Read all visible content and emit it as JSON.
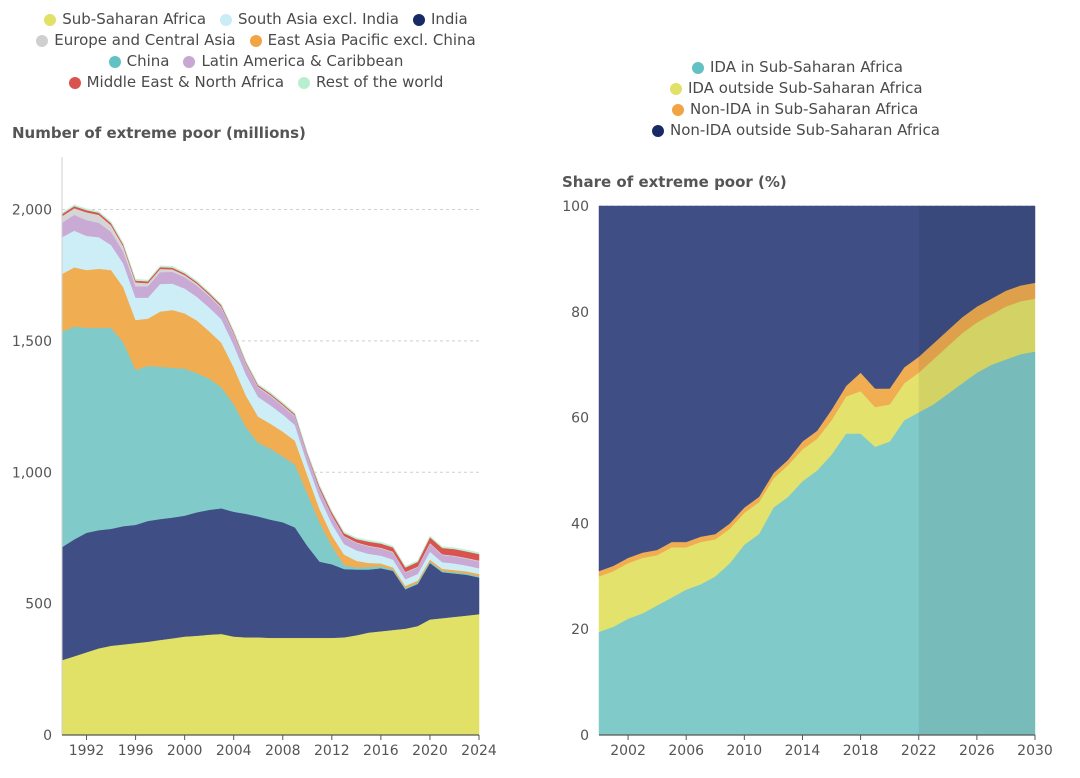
{
  "legend_left": [
    {
      "label": "Sub-Saharan Africa",
      "color": "#e1e067"
    },
    {
      "label": "South Asia excl. India",
      "color": "#c9ecf7"
    },
    {
      "label": "India",
      "color": "#182a66"
    },
    {
      "label": "Europe and Central Asia",
      "color": "#cfcfcf"
    },
    {
      "label": "East Asia Pacific excl. China",
      "color": "#f0a443"
    },
    {
      "label": "China",
      "color": "#62c1c2"
    },
    {
      "label": "Latin America & Caribbean",
      "color": "#c8a7d3"
    },
    {
      "label": "Middle East & North Africa",
      "color": "#d9534f"
    },
    {
      "label": "Rest of the world",
      "color": "#b7f0cf"
    }
  ],
  "legend_right": [
    {
      "label": "IDA in Sub-Saharan Africa",
      "color": "#62c1c2"
    },
    {
      "label": "IDA outside Sub-Saharan Africa",
      "color": "#e1e067"
    },
    {
      "label": "Non-IDA in Sub-Saharan Africa",
      "color": "#f0a443"
    },
    {
      "label": "Non-IDA outside Sub-Saharan Africa",
      "color": "#182a66"
    }
  ],
  "chart_data": [
    {
      "type": "area",
      "stacked": true,
      "title": "Number of extreme poor (millions)",
      "xlabel": "",
      "ylabel": "",
      "x": [
        1990,
        1991,
        1992,
        1993,
        1994,
        1995,
        1996,
        1997,
        1998,
        1999,
        2000,
        2001,
        2002,
        2003,
        2004,
        2005,
        2006,
        2007,
        2008,
        2009,
        2010,
        2011,
        2012,
        2013,
        2014,
        2015,
        2016,
        2017,
        2018,
        2019,
        2020,
        2021,
        2022,
        2023,
        2024
      ],
      "xticks": [
        "1992",
        "1996",
        "2000",
        "2004",
        "2008",
        "2012",
        "2016",
        "2020",
        "2024"
      ],
      "xtick_values": [
        1992,
        1996,
        2000,
        2004,
        2008,
        2012,
        2016,
        2020,
        2024
      ],
      "yticks": [
        "0",
        "500",
        "1,000",
        "1,500",
        "2,000"
      ],
      "ytick_values": [
        0,
        500,
        1000,
        1500,
        2000
      ],
      "ylim": [
        0,
        2200
      ],
      "grid": true,
      "series": [
        {
          "name": "Sub-Saharan Africa",
          "color": "#e1e067",
          "values": [
            285,
            300,
            315,
            330,
            340,
            345,
            350,
            355,
            362,
            368,
            375,
            378,
            382,
            385,
            375,
            372,
            372,
            370,
            370,
            370,
            370,
            370,
            370,
            372,
            380,
            390,
            395,
            400,
            405,
            415,
            440,
            445,
            450,
            455,
            460
          ]
        },
        {
          "name": "India",
          "color": "#3f4f85",
          "values": [
            430,
            445,
            455,
            450,
            445,
            450,
            450,
            460,
            460,
            460,
            460,
            470,
            475,
            478,
            475,
            470,
            460,
            450,
            440,
            420,
            350,
            290,
            280,
            260,
            250,
            240,
            240,
            225,
            150,
            160,
            215,
            175,
            165,
            155,
            140
          ]
        },
        {
          "name": "China",
          "color": "#80cbca",
          "values": [
            820,
            810,
            780,
            770,
            765,
            700,
            590,
            590,
            580,
            570,
            560,
            530,
            500,
            460,
            410,
            330,
            280,
            270,
            250,
            240,
            200,
            150,
            70,
            15,
            8,
            10,
            8,
            5,
            5,
            5,
            5,
            5,
            5,
            5,
            5
          ]
        },
        {
          "name": "East Asia Pacific excl. China",
          "color": "#f0ad52",
          "values": [
            220,
            225,
            220,
            225,
            220,
            210,
            190,
            180,
            210,
            220,
            210,
            200,
            180,
            170,
            140,
            120,
            100,
            95,
            95,
            90,
            70,
            50,
            40,
            40,
            25,
            15,
            10,
            8,
            8,
            8,
            8,
            8,
            8,
            8,
            8
          ]
        },
        {
          "name": "South Asia excl. India",
          "color": "#cdeef7",
          "values": [
            140,
            140,
            130,
            120,
            95,
            90,
            85,
            80,
            105,
            100,
            95,
            90,
            90,
            90,
            85,
            80,
            75,
            70,
            65,
            60,
            45,
            45,
            45,
            40,
            40,
            35,
            30,
            30,
            25,
            25,
            30,
            25,
            25,
            22,
            22
          ]
        },
        {
          "name": "Latin America & Caribbean",
          "color": "#c8aad5",
          "values": [
            55,
            60,
            60,
            55,
            50,
            45,
            43,
            43,
            45,
            45,
            43,
            43,
            43,
            42,
            40,
            38,
            35,
            35,
            32,
            32,
            30,
            30,
            30,
            28,
            28,
            28,
            27,
            27,
            25,
            25,
            30,
            27,
            27,
            26,
            26
          ]
        },
        {
          "name": "Europe and Central Asia",
          "color": "#d5d5d5",
          "values": [
            25,
            25,
            30,
            30,
            25,
            20,
            15,
            12,
            12,
            10,
            8,
            7,
            6,
            5,
            5,
            4,
            4,
            4,
            4,
            4,
            3,
            3,
            3,
            3,
            3,
            3,
            3,
            3,
            3,
            3,
            3,
            3,
            3,
            3,
            3
          ]
        },
        {
          "name": "Middle East & North Africa",
          "color": "#d9534f",
          "values": [
            8,
            8,
            8,
            8,
            8,
            7,
            7,
            7,
            7,
            6,
            6,
            6,
            6,
            6,
            5,
            5,
            5,
            5,
            5,
            5,
            5,
            8,
            10,
            10,
            12,
            15,
            16,
            16,
            17,
            18,
            22,
            24,
            25,
            25,
            25
          ]
        },
        {
          "name": "Rest of the world",
          "color": "#bff2d4",
          "values": [
            5,
            5,
            5,
            5,
            5,
            5,
            5,
            5,
            5,
            5,
            5,
            5,
            5,
            5,
            5,
            5,
            5,
            5,
            5,
            5,
            5,
            5,
            5,
            5,
            5,
            5,
            5,
            5,
            5,
            5,
            5,
            5,
            5,
            5,
            5
          ]
        }
      ]
    },
    {
      "type": "area",
      "stacked": true,
      "title": "Share of extreme poor (%)",
      "xlabel": "",
      "ylabel": "",
      "x": [
        2000,
        2001,
        2002,
        2003,
        2004,
        2005,
        2006,
        2007,
        2008,
        2009,
        2010,
        2011,
        2012,
        2013,
        2014,
        2015,
        2016,
        2017,
        2018,
        2019,
        2020,
        2021,
        2022,
        2023,
        2024,
        2025,
        2026,
        2027,
        2028,
        2029,
        2030
      ],
      "xticks": [
        "2002",
        "2006",
        "2010",
        "2014",
        "2018",
        "2022",
        "2026",
        "2030"
      ],
      "xtick_values": [
        2002,
        2006,
        2010,
        2014,
        2018,
        2022,
        2026,
        2030
      ],
      "yticks": [
        "0",
        "20",
        "40",
        "60",
        "80",
        "100"
      ],
      "ytick_values": [
        0,
        20,
        40,
        60,
        80,
        100
      ],
      "ylim": [
        0,
        100
      ],
      "grid": true,
      "projection_start": 2022,
      "series": [
        {
          "name": "IDA in Sub-Saharan Africa",
          "color": "#80cbca",
          "values": [
            19.5,
            20.5,
            22,
            23,
            24.5,
            26,
            27.5,
            28.5,
            30,
            32.5,
            36,
            38,
            43,
            45,
            48,
            50,
            53,
            57,
            57,
            54.5,
            55.5,
            59.5,
            61,
            62.5,
            64.5,
            66.5,
            68.5,
            70,
            71,
            72,
            72.5
          ]
        },
        {
          "name": "IDA outside Sub-Saharan Africa",
          "color": "#e3e26c",
          "values": [
            10.5,
            10.5,
            10.5,
            10.5,
            9.5,
            9.5,
            8,
            8,
            7,
            6.5,
            6,
            6,
            5.5,
            6,
            6,
            6,
            6.5,
            7,
            8,
            7.5,
            7,
            7,
            7.5,
            8.5,
            9,
            9.5,
            9.5,
            9.5,
            10,
            10,
            10
          ]
        },
        {
          "name": "Non-IDA in Sub-Saharan Africa",
          "color": "#f0ad52",
          "values": [
            1,
            1,
            1,
            1,
            1,
            1,
            1,
            1,
            1,
            1,
            1,
            1,
            1,
            1,
            1.5,
            1.5,
            2,
            2,
            3.5,
            3.5,
            3,
            3,
            3,
            3,
            3,
            3,
            3,
            3,
            3,
            3,
            3
          ]
        },
        {
          "name": "Non-IDA outside Sub-Saharan Africa",
          "color": "#3f4f85",
          "values": [
            69,
            68,
            66.5,
            65.5,
            65,
            63.5,
            63.5,
            62.5,
            62,
            60,
            57,
            55,
            50.5,
            48,
            44.5,
            42.5,
            38.5,
            34,
            31.5,
            34.5,
            34.5,
            30.5,
            28.5,
            26,
            23.5,
            21,
            19,
            17.5,
            16,
            15,
            14.5
          ]
        }
      ]
    }
  ]
}
